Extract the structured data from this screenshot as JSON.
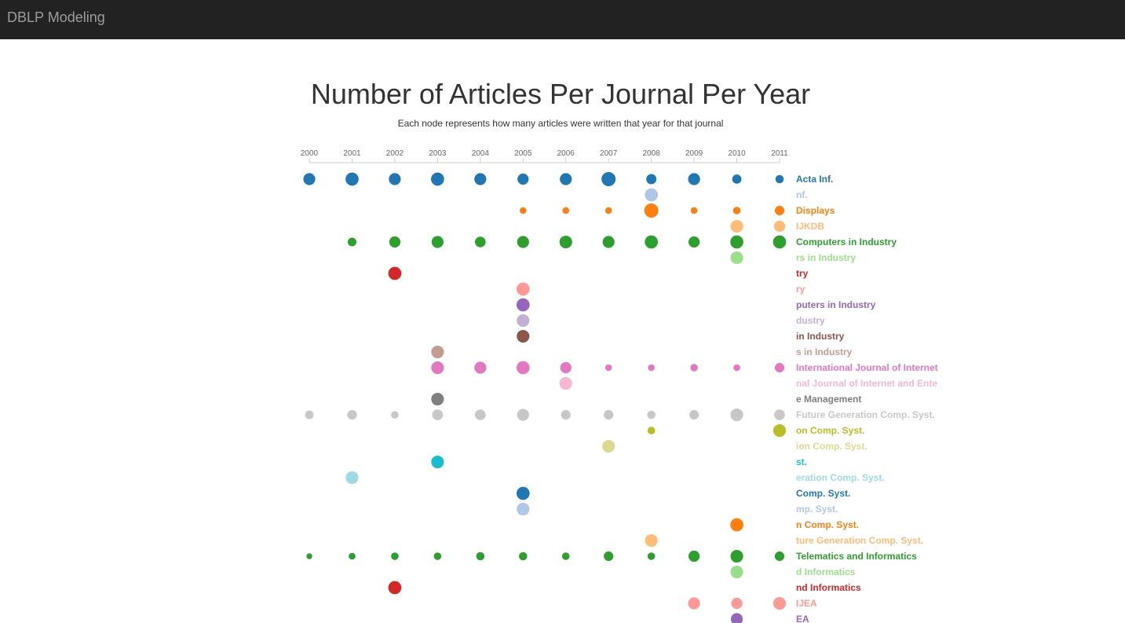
{
  "navbar": {
    "brand": "DBLP Modeling"
  },
  "header": {
    "title": "Number of Articles Per Journal Per Year",
    "subtitle": "Each node represents how many articles were written that year for that journal"
  },
  "chart_data": {
    "type": "scatter",
    "title": "Number of Articles Per Journal Per Year",
    "subtitle": "Each node represents how many articles were written that year for that journal",
    "x": [
      2000,
      2001,
      2002,
      2003,
      2004,
      2005,
      2006,
      2007,
      2008,
      2009,
      2010,
      2011
    ],
    "xlim": [
      2000,
      2011
    ],
    "palette": [
      "#1f77b4",
      "#aec7e8",
      "#ff7f0e",
      "#ffbb78",
      "#2ca02c",
      "#98df8a",
      "#d62728",
      "#ff9896",
      "#9467bd",
      "#c5b0d5",
      "#8c564b",
      "#c49c94",
      "#e377c2",
      "#f7b6d2",
      "#7f7f7f",
      "#c7c7c7",
      "#bcbd22",
      "#dbdb8d",
      "#17becf",
      "#9edae5"
    ],
    "series": [
      {
        "name": "Acta Inf.",
        "points": [
          [
            2000,
            25
          ],
          [
            2001,
            30
          ],
          [
            2002,
            25
          ],
          [
            2003,
            30
          ],
          [
            2004,
            25
          ],
          [
            2005,
            22
          ],
          [
            2006,
            25
          ],
          [
            2007,
            35
          ],
          [
            2008,
            18
          ],
          [
            2009,
            25
          ],
          [
            2010,
            15
          ],
          [
            2011,
            12
          ]
        ]
      },
      {
        "name": "nf.",
        "points": [
          [
            2008,
            30
          ]
        ]
      },
      {
        "name": "Displays",
        "points": [
          [
            2005,
            8
          ],
          [
            2006,
            8
          ],
          [
            2007,
            8
          ],
          [
            2008,
            35
          ],
          [
            2009,
            8
          ],
          [
            2010,
            10
          ],
          [
            2011,
            16
          ]
        ]
      },
      {
        "name": "IJKDB",
        "points": [
          [
            2010,
            28
          ],
          [
            2011,
            22
          ]
        ]
      },
      {
        "name": "Computers in Industry",
        "points": [
          [
            2001,
            13
          ],
          [
            2002,
            22
          ],
          [
            2003,
            25
          ],
          [
            2004,
            20
          ],
          [
            2005,
            25
          ],
          [
            2006,
            28
          ],
          [
            2007,
            25
          ],
          [
            2008,
            30
          ],
          [
            2009,
            22
          ],
          [
            2010,
            30
          ],
          [
            2011,
            30
          ]
        ]
      },
      {
        "name": "rs in Industry",
        "points": [
          [
            2010,
            28
          ]
        ]
      },
      {
        "name": "try",
        "points": [
          [
            2002,
            30
          ]
        ]
      },
      {
        "name": "ry",
        "points": [
          [
            2005,
            30
          ]
        ]
      },
      {
        "name": "puters in Industry",
        "points": [
          [
            2005,
            30
          ]
        ]
      },
      {
        "name": "dustry",
        "points": [
          [
            2005,
            28
          ]
        ]
      },
      {
        "name": "in Industry",
        "points": [
          [
            2005,
            28
          ]
        ]
      },
      {
        "name": "s in Industry",
        "points": [
          [
            2003,
            28
          ]
        ]
      },
      {
        "name": "International Journal of Internet",
        "points": [
          [
            2003,
            28
          ],
          [
            2004,
            25
          ],
          [
            2005,
            30
          ],
          [
            2006,
            22
          ],
          [
            2007,
            8
          ],
          [
            2008,
            8
          ],
          [
            2009,
            10
          ],
          [
            2010,
            8
          ],
          [
            2011,
            16
          ]
        ]
      },
      {
        "name": "nal Journal of Internet and Ente",
        "points": [
          [
            2006,
            28
          ]
        ]
      },
      {
        "name": "e Management",
        "points": [
          [
            2003,
            28
          ]
        ]
      },
      {
        "name": "Future Generation Comp. Syst.",
        "points": [
          [
            2000,
            13
          ],
          [
            2001,
            16
          ],
          [
            2002,
            10
          ],
          [
            2003,
            20
          ],
          [
            2004,
            20
          ],
          [
            2005,
            25
          ],
          [
            2006,
            16
          ],
          [
            2007,
            16
          ],
          [
            2008,
            12
          ],
          [
            2009,
            16
          ],
          [
            2010,
            28
          ],
          [
            2011,
            20
          ]
        ]
      },
      {
        "name": "on Comp. Syst.",
        "points": [
          [
            2008,
            10
          ],
          [
            2011,
            28
          ]
        ]
      },
      {
        "name": "ion Comp. Syst.",
        "points": [
          [
            2007,
            28
          ]
        ]
      },
      {
        "name": "st.",
        "points": [
          [
            2003,
            28
          ]
        ]
      },
      {
        "name": "eration Comp. Syst.",
        "points": [
          [
            2001,
            28
          ]
        ]
      },
      {
        "name": "Comp. Syst.",
        "points": [
          [
            2005,
            30
          ]
        ]
      },
      {
        "name": "mp. Syst.",
        "points": [
          [
            2005,
            28
          ]
        ]
      },
      {
        "name": "n Comp. Syst.",
        "points": [
          [
            2010,
            30
          ]
        ]
      },
      {
        "name": "ture Generation Comp. Syst.",
        "points": [
          [
            2008,
            28
          ]
        ]
      },
      {
        "name": "Telematics and Informatics",
        "points": [
          [
            2000,
            6
          ],
          [
            2001,
            8
          ],
          [
            2002,
            10
          ],
          [
            2003,
            10
          ],
          [
            2004,
            12
          ],
          [
            2005,
            12
          ],
          [
            2006,
            10
          ],
          [
            2007,
            16
          ],
          [
            2008,
            10
          ],
          [
            2009,
            22
          ],
          [
            2010,
            28
          ],
          [
            2011,
            16
          ]
        ]
      },
      {
        "name": "d Informatics",
        "points": [
          [
            2010,
            28
          ]
        ]
      },
      {
        "name": "nd Informatics",
        "points": [
          [
            2002,
            30
          ]
        ]
      },
      {
        "name": "IJEA",
        "points": [
          [
            2009,
            25
          ],
          [
            2010,
            22
          ],
          [
            2011,
            28
          ]
        ]
      },
      {
        "name": "EA",
        "points": [
          [
            2010,
            25
          ]
        ]
      }
    ]
  }
}
